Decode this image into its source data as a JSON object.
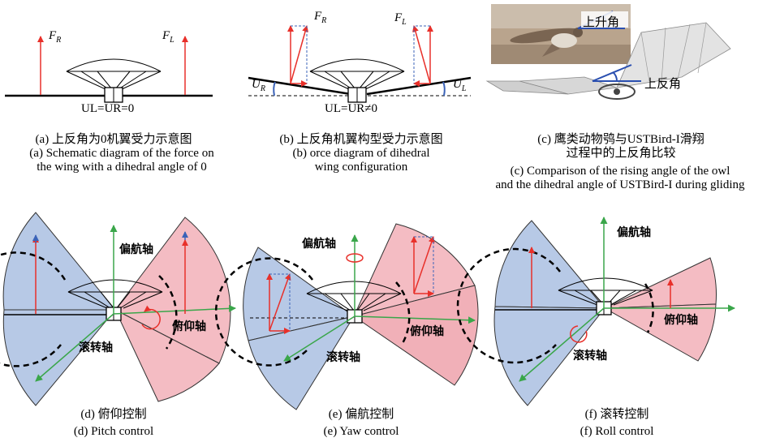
{
  "panel_a": {
    "force_left": "F",
    "force_left_sub": "R",
    "force_right": "F",
    "force_right_sub": "L",
    "equation": "UL=UR=0",
    "caption_zh": "(a) 上反角为0机翼受力示意图",
    "caption_en_1": "(a) Schematic diagram of the force on",
    "caption_en_2": "the wing with a dihedral angle of 0"
  },
  "panel_b": {
    "force_left": "F",
    "force_left_sub": "R",
    "force_right": "F",
    "force_right_sub": "L",
    "angle_left": "U",
    "angle_left_sub": "R",
    "angle_right": "U",
    "angle_right_sub": "L",
    "equation": "UL=UR≠0",
    "caption_zh": "(b) 上反角机翼构型受力示意图",
    "caption_en_1": "(b) orce diagram of dihedral",
    "caption_en_2": "wing configuration"
  },
  "panel_c": {
    "label_rise": "上升角",
    "label_dihedral": "上反角",
    "caption_zh_1": "(c) 鹰类动物鸮与USTBird-I滑翔",
    "caption_zh_2": "过程中的上反角比较",
    "caption_en_1": "(c) Comparison of the rising angle of the owl",
    "caption_en_2": "and the dihedral angle of USTBird-I during gliding"
  },
  "panel_d": {
    "yaw_axis": "偏航轴",
    "pitch_axis": "俯仰轴",
    "roll_axis": "滚转轴",
    "caption_zh": "(d) 俯仰控制",
    "caption_en": "(d) Pitch control"
  },
  "panel_e": {
    "yaw_axis": "偏航轴",
    "pitch_axis": "俯仰轴",
    "roll_axis": "滚转轴",
    "caption_zh": "(e) 偏航控制",
    "caption_en": "(e) Yaw control"
  },
  "panel_f": {
    "yaw_axis": "偏航轴",
    "pitch_axis": "俯仰轴",
    "roll_axis": "滚转轴",
    "caption_zh": "(f) 滚转控制",
    "caption_en": "(f) Roll control"
  },
  "colors": {
    "force_red": "#e8302a",
    "component_blue": "#3b63b8",
    "axis_green": "#3aa64a",
    "wing_blue": "#b7c9e6",
    "wing_pink": "#f4bcc3"
  }
}
